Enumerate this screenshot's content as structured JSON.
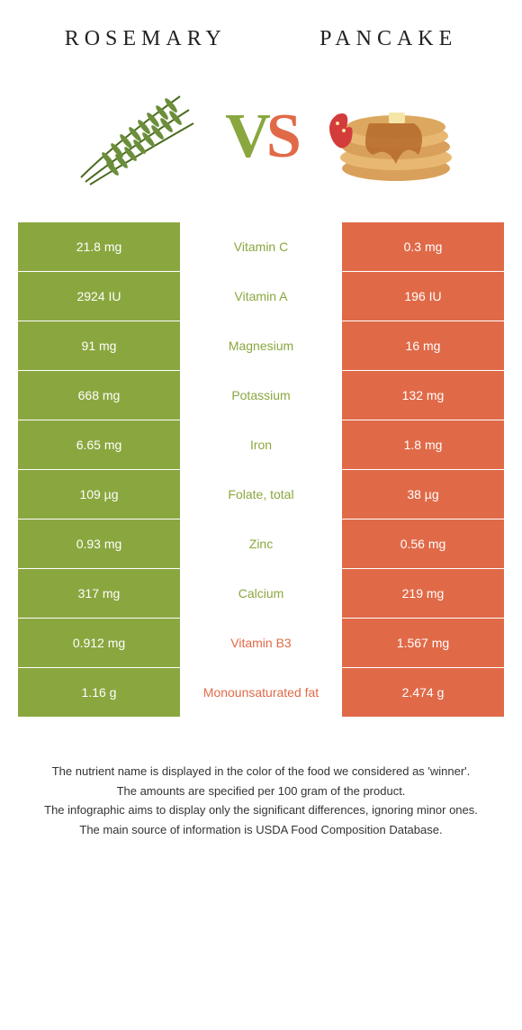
{
  "header": {
    "left_title": "Rosemary",
    "right_title": "Pancake",
    "vs_v": "V",
    "vs_s": "S"
  },
  "colors": {
    "left_bg": "#8aa73f",
    "right_bg": "#e06a48",
    "left_text": "#8aa73f",
    "right_text": "#e06a48",
    "row_border": "#ffffff"
  },
  "rows": [
    {
      "left": "21.8 mg",
      "mid": "Vitamin C",
      "right": "0.3 mg",
      "winner": "left"
    },
    {
      "left": "2924 IU",
      "mid": "Vitamin A",
      "right": "196 IU",
      "winner": "left"
    },
    {
      "left": "91 mg",
      "mid": "Magnesium",
      "right": "16 mg",
      "winner": "left"
    },
    {
      "left": "668 mg",
      "mid": "Potassium",
      "right": "132 mg",
      "winner": "left"
    },
    {
      "left": "6.65 mg",
      "mid": "Iron",
      "right": "1.8 mg",
      "winner": "left"
    },
    {
      "left": "109 µg",
      "mid": "Folate, total",
      "right": "38 µg",
      "winner": "left"
    },
    {
      "left": "0.93 mg",
      "mid": "Zinc",
      "right": "0.56 mg",
      "winner": "left"
    },
    {
      "left": "317 mg",
      "mid": "Calcium",
      "right": "219 mg",
      "winner": "left"
    },
    {
      "left": "0.912 mg",
      "mid": "Vitamin B3",
      "right": "1.567 mg",
      "winner": "right"
    },
    {
      "left": "1.16 g",
      "mid": "Monounsaturated fat",
      "right": "2.474 g",
      "winner": "right"
    }
  ],
  "footer": {
    "line1": "The nutrient name is displayed in the color of the food we considered as 'winner'.",
    "line2": "The amounts are specified per 100 gram of the product.",
    "line3": "The infographic aims to display only the significant differences, ignoring minor ones.",
    "line4": "The main source of information is USDA Food Composition Database."
  }
}
